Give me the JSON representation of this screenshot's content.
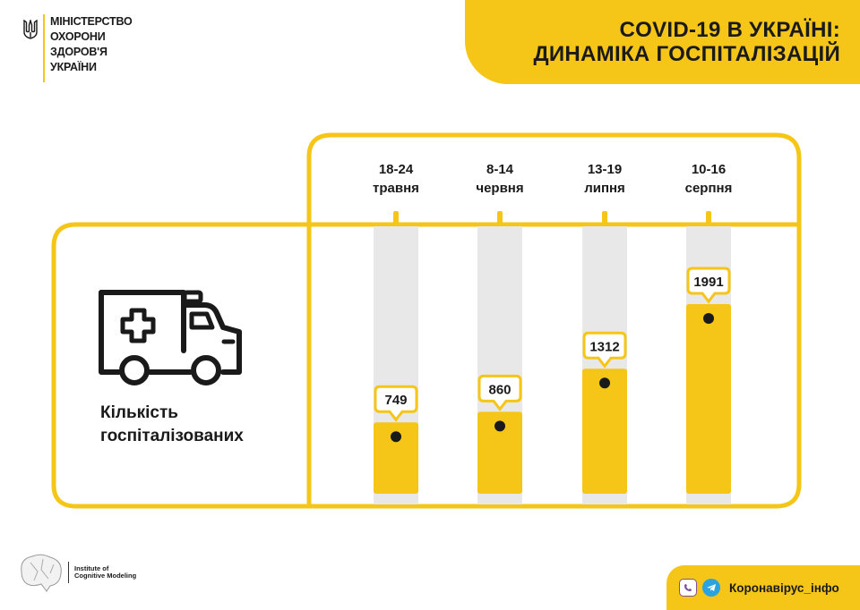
{
  "ministry": {
    "lines": [
      "МІНІСТЕРСТВО",
      "ОХОРОНИ",
      "ЗДОРОВ'Я",
      "УКРАЇНИ"
    ]
  },
  "header": {
    "title_line1": "COVID-19 В УКРАЇНІ:",
    "title_line2": "ДИНАМІКА ГОСПІТАЛІЗАЦІЙ"
  },
  "label": {
    "line1": "Кількість",
    "line2": "госпіталізованих"
  },
  "chart_data": {
    "type": "bar",
    "categories": [
      {
        "line1": "18-24",
        "line2": "травня"
      },
      {
        "line1": "8-14",
        "line2": "червня"
      },
      {
        "line1": "13-19",
        "line2": "липня"
      },
      {
        "line1": "10-16",
        "line2": "серпня"
      }
    ],
    "values": [
      749,
      860,
      1312,
      1991
    ],
    "data_labels": [
      "749",
      "860",
      "1312",
      "1991"
    ],
    "title": "",
    "xlabel": "",
    "ylabel": "",
    "grid": false
  },
  "footer": {
    "institute_line1": "Institute of",
    "institute_line2": "Cognitive Modeling",
    "channel": "Коронавірус_інфо"
  },
  "colors": {
    "accent": "#f5c518",
    "track": "#e8e8e8",
    "text": "#1a1a1a",
    "viber": "#7b519d",
    "telegram": "#2aa3df"
  }
}
